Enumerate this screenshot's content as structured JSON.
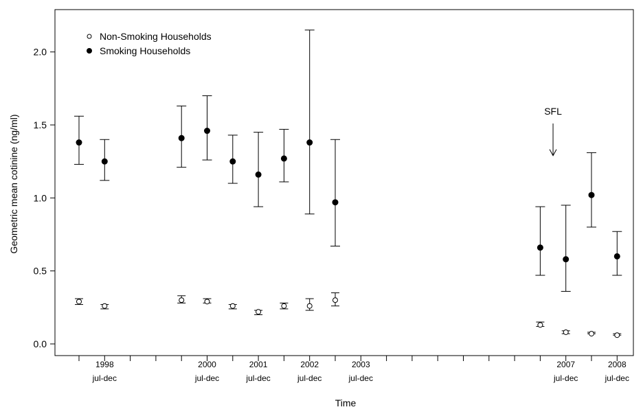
{
  "chart_data": {
    "type": "scatter",
    "xlabel": "Time",
    "ylabel": "Geometric mean cotinine (ng/ml)",
    "ylim": [
      -0.08,
      2.29
    ],
    "yticks": [
      "0.0",
      "0.5",
      "1.0",
      "1.5",
      "2.0"
    ],
    "x_slot_count": 22,
    "x_tick_labels": [
      {
        "slot": 2,
        "year": "1998",
        "period": "jul-dec"
      },
      {
        "slot": 6,
        "year": "2000",
        "period": "jul-dec"
      },
      {
        "slot": 8,
        "year": "2001",
        "period": "jul-dec"
      },
      {
        "slot": 10,
        "year": "2002",
        "period": "jul-dec"
      },
      {
        "slot": 12,
        "year": "2003",
        "period": "jul-dec"
      },
      {
        "slot": 20,
        "year": "2007",
        "period": "jul-dec"
      },
      {
        "slot": 22,
        "year": "2008",
        "period": "jul-dec"
      }
    ],
    "legend": {
      "position": "top-left"
    },
    "series": [
      {
        "name": "Smoking Households",
        "marker": "filled-circle",
        "points": [
          {
            "slot": 1,
            "y": 1.38,
            "lo": 1.23,
            "hi": 1.56
          },
          {
            "slot": 2,
            "y": 1.25,
            "lo": 1.12,
            "hi": 1.4
          },
          {
            "slot": 5,
            "y": 1.41,
            "lo": 1.21,
            "hi": 1.63
          },
          {
            "slot": 6,
            "y": 1.46,
            "lo": 1.26,
            "hi": 1.7
          },
          {
            "slot": 7,
            "y": 1.25,
            "lo": 1.1,
            "hi": 1.43
          },
          {
            "slot": 8,
            "y": 1.16,
            "lo": 0.94,
            "hi": 1.45
          },
          {
            "slot": 9,
            "y": 1.27,
            "lo": 1.11,
            "hi": 1.47
          },
          {
            "slot": 10,
            "y": 1.38,
            "lo": 0.89,
            "hi": 2.15
          },
          {
            "slot": 11,
            "y": 0.97,
            "lo": 0.67,
            "hi": 1.4
          },
          {
            "slot": 19,
            "y": 0.66,
            "lo": 0.47,
            "hi": 0.94
          },
          {
            "slot": 20,
            "y": 0.58,
            "lo": 0.36,
            "hi": 0.95
          },
          {
            "slot": 21,
            "y": 1.02,
            "lo": 0.8,
            "hi": 1.31
          },
          {
            "slot": 22,
            "y": 0.6,
            "lo": 0.47,
            "hi": 0.77
          }
        ]
      },
      {
        "name": "Non-Smoking Households",
        "marker": "open-circle",
        "points": [
          {
            "slot": 1,
            "y": 0.29,
            "lo": 0.27,
            "hi": 0.31
          },
          {
            "slot": 2,
            "y": 0.26,
            "lo": 0.24,
            "hi": 0.27
          },
          {
            "slot": 5,
            "y": 0.3,
            "lo": 0.28,
            "hi": 0.33
          },
          {
            "slot": 6,
            "y": 0.29,
            "lo": 0.28,
            "hi": 0.31
          },
          {
            "slot": 7,
            "y": 0.26,
            "lo": 0.24,
            "hi": 0.27
          },
          {
            "slot": 8,
            "y": 0.22,
            "lo": 0.2,
            "hi": 0.23
          },
          {
            "slot": 9,
            "y": 0.26,
            "lo": 0.24,
            "hi": 0.28
          },
          {
            "slot": 10,
            "y": 0.26,
            "lo": 0.23,
            "hi": 0.31
          },
          {
            "slot": 11,
            "y": 0.3,
            "lo": 0.26,
            "hi": 0.35
          },
          {
            "slot": 19,
            "y": 0.13,
            "lo": 0.12,
            "hi": 0.15
          },
          {
            "slot": 20,
            "y": 0.08,
            "lo": 0.07,
            "hi": 0.09
          },
          {
            "slot": 21,
            "y": 0.07,
            "lo": 0.07,
            "hi": 0.08
          },
          {
            "slot": 22,
            "y": 0.06,
            "lo": 0.06,
            "hi": 0.07
          }
        ]
      }
    ],
    "annotations": [
      {
        "text": "SFL",
        "slot": 19.5,
        "arrow_top_y": 1.51,
        "arrow_bottom_y": 1.29
      }
    ]
  }
}
